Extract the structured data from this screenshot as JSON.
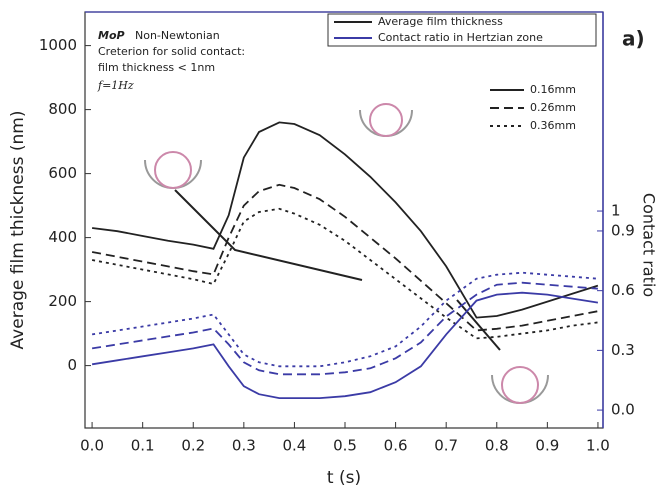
{
  "chart_data": {
    "type": "line",
    "panel_label": "a)",
    "xlabel": "t (s)",
    "ylabel": "Average film thickness (nm)",
    "y2label": "Contact ratio",
    "annotations": [
      "MoP",
      "Non-Newtonian",
      "Creterion for solid contact:",
      "film thickness < 1nm",
      "f=1Hz"
    ],
    "x": [
      0,
      0.05,
      0.1,
      0.15,
      0.2,
      0.24,
      0.27,
      0.3,
      0.33,
      0.37,
      0.4,
      0.45,
      0.5,
      0.55,
      0.6,
      0.65,
      0.7,
      0.76,
      0.8,
      0.85,
      0.9,
      0.95,
      1.0
    ],
    "xlim": [
      -0.014,
      1.01
    ],
    "xticks": [
      {
        "value": 0,
        "label": "0.0"
      },
      0.1,
      0.2,
      0.3,
      0.4,
      0.5,
      0.6,
      0.7,
      0.8,
      0.9,
      {
        "value": 1,
        "label": "1.0"
      }
    ],
    "ylim": [
      -195,
      1105
    ],
    "yticks": [
      0,
      200,
      400,
      600,
      800,
      1000
    ],
    "y2lim": [
      -0.09,
      2.0
    ],
    "y2ticks": [
      {
        "value": 0,
        "label": "0.0"
      },
      0.3,
      0.6,
      0.9,
      1
    ],
    "style_legend": [
      {
        "label": "Average film thickness",
        "color": "#222222"
      },
      {
        "label": "Contact ratio in Hertzian zone",
        "color": "#3b3ba6"
      }
    ],
    "series": [
      {
        "name": "0.16mm",
        "color": "#222222",
        "dash": "solid",
        "values": [
          430,
          420,
          405,
          390,
          378,
          365,
          470,
          650,
          730,
          760,
          755,
          720,
          660,
          590,
          510,
          420,
          310,
          150,
          155,
          175,
          200,
          225,
          250
        ]
      },
      {
        "name": "0.26mm",
        "color": "#222222",
        "dash": "dashed",
        "values": [
          355,
          340,
          325,
          310,
          295,
          285,
          400,
          500,
          545,
          565,
          555,
          520,
          465,
          400,
          335,
          265,
          195,
          110,
          115,
          125,
          140,
          155,
          170
        ]
      },
      {
        "name": "0.36mm",
        "color": "#222222",
        "dash": "dotted",
        "values": [
          330,
          315,
          300,
          285,
          270,
          255,
          350,
          450,
          480,
          490,
          475,
          440,
          390,
          330,
          270,
          210,
          150,
          85,
          90,
          100,
          110,
          125,
          135
        ]
      },
      {
        "color": "#3b3ba6",
        "dash": "solid",
        "axis": "y2",
        "values": [
          0.23,
          0.25,
          0.27,
          0.29,
          0.31,
          0.33,
          0.22,
          0.12,
          0.08,
          0.06,
          0.06,
          0.06,
          0.07,
          0.09,
          0.14,
          0.22,
          0.38,
          0.55,
          0.58,
          0.59,
          0.58,
          0.56,
          0.54
        ]
      },
      {
        "color": "#3b3ba6",
        "dash": "dashed",
        "axis": "y2",
        "values": [
          0.31,
          0.33,
          0.35,
          0.37,
          0.39,
          0.41,
          0.33,
          0.24,
          0.2,
          0.18,
          0.18,
          0.18,
          0.19,
          0.21,
          0.26,
          0.34,
          0.47,
          0.58,
          0.63,
          0.64,
          0.63,
          0.62,
          0.61
        ]
      },
      {
        "color": "#3b3ba6",
        "dash": "dotted",
        "axis": "y2",
        "values": [
          0.38,
          0.4,
          0.42,
          0.44,
          0.46,
          0.48,
          0.38,
          0.28,
          0.24,
          0.22,
          0.22,
          0.22,
          0.24,
          0.27,
          0.32,
          0.42,
          0.55,
          0.66,
          0.68,
          0.69,
          0.68,
          0.67,
          0.66
        ]
      }
    ]
  }
}
